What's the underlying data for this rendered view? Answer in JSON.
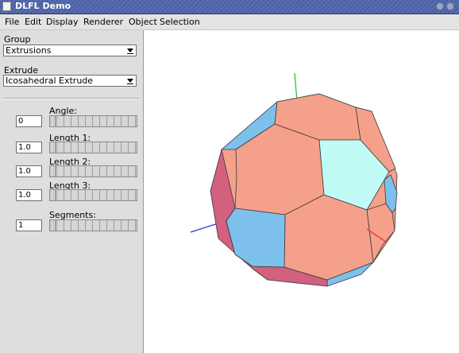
{
  "window": {
    "title": "DLFL Demo"
  },
  "menu": [
    "File",
    "Edit",
    "Display",
    "Renderer",
    "Object",
    "Selection"
  ],
  "panel": {
    "group": {
      "label": "Group",
      "value": "Extrusions"
    },
    "extrude": {
      "label": "Extrude",
      "value": "Icosahedral Extrude"
    },
    "params": [
      {
        "label": "Angle:",
        "value": "0"
      },
      {
        "label": "Length 1:",
        "value": "1.0"
      },
      {
        "label": "Length 2:",
        "value": "1.0"
      },
      {
        "label": "Length 3:",
        "value": "1.0"
      },
      {
        "label": "Segments:",
        "value": "1"
      }
    ]
  },
  "viewport": {
    "axis_colors": {
      "x": "#e53030",
      "y": "#20c020",
      "z": "#2030d0"
    },
    "face_colors": {
      "salmon": "#f4a08a",
      "blue": "#7ec0ec",
      "cyan": "#c0fbf6",
      "rose": "#d2607e"
    }
  }
}
